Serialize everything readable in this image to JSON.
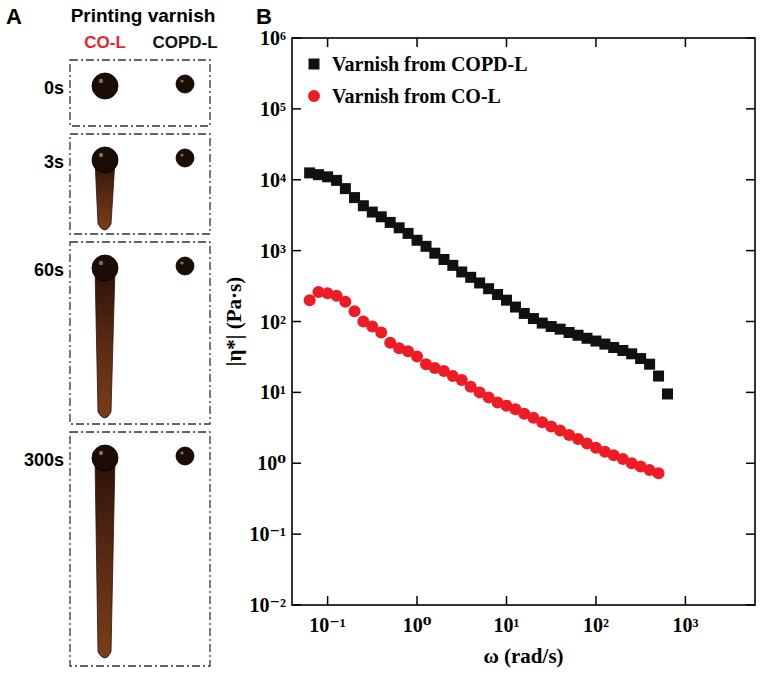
{
  "panel_letters": [
    "A",
    "B"
  ],
  "panel_a": {
    "title": "Printing varnish",
    "columns": [
      {
        "label": "CO-L",
        "color": "#e3262c"
      },
      {
        "label": "COPD-L",
        "color": "#111111"
      }
    ],
    "rows": [
      "0s",
      "3s",
      "60s",
      "300s"
    ]
  },
  "chart_data": {
    "type": "scatter",
    "log": true,
    "legend": "upper left",
    "xlabel": "ω (rad/s)",
    "ylabel": "|η*| (Pa·s)",
    "xlim": [
      0.04,
      6000
    ],
    "ylim": [
      0.01,
      1000000
    ],
    "xticks": [
      {
        "value": 0.1,
        "label": "10⁻¹"
      },
      {
        "value": 1,
        "label": "10⁰"
      },
      {
        "value": 10,
        "label": "10¹"
      },
      {
        "value": 100,
        "label": "10²"
      },
      {
        "value": 1000,
        "label": "10³"
      }
    ],
    "yticks": [
      {
        "value": 0.01,
        "label": "10⁻²"
      },
      {
        "value": 0.1,
        "label": "10⁻¹"
      },
      {
        "value": 1,
        "label": "10⁰"
      },
      {
        "value": 10,
        "label": "10¹"
      },
      {
        "value": 100,
        "label": "10²"
      },
      {
        "value": 1000,
        "label": "10³"
      },
      {
        "value": 10000,
        "label": "10⁴"
      },
      {
        "value": 100000,
        "label": "10⁵"
      },
      {
        "value": 1000000,
        "label": "10⁶"
      }
    ],
    "x": [
      0.063,
      0.079,
      0.1,
      0.126,
      0.158,
      0.2,
      0.251,
      0.316,
      0.398,
      0.501,
      0.631,
      0.794,
      1,
      1.26,
      1.58,
      2,
      2.51,
      3.16,
      3.98,
      5.01,
      6.31,
      7.94,
      10,
      12.6,
      15.8,
      20,
      25.1,
      31.6,
      39.8,
      50.1,
      63.1,
      79.4,
      100,
      126,
      158,
      200,
      251,
      316,
      398,
      501,
      631
    ],
    "series": [
      {
        "name": "Varnish from COPD-L",
        "color": "#111111",
        "marker": "square",
        "values": [
          12500,
          11800,
          11000,
          9800,
          7500,
          5600,
          4300,
          3500,
          3000,
          2500,
          2100,
          1750,
          1400,
          1150,
          920,
          750,
          620,
          500,
          420,
          350,
          290,
          240,
          200,
          160,
          130,
          110,
          95,
          85,
          78,
          70,
          64,
          58,
          53,
          48,
          43,
          39,
          35,
          30,
          25,
          17,
          9.5
        ]
      },
      {
        "name": "Varnish from CO-L",
        "color": "#ee1c24",
        "marker": "circle",
        "values": [
          200,
          260,
          250,
          230,
          190,
          140,
          100,
          85,
          70,
          50,
          42,
          38,
          32,
          25,
          22,
          20,
          17,
          15,
          12,
          10,
          8.5,
          7.2,
          6.5,
          5.8,
          5.0,
          4.4,
          3.8,
          3.3,
          2.9,
          2.5,
          2.2,
          1.9,
          1.65,
          1.45,
          1.3,
          1.15,
          1.0,
          0.9,
          0.8,
          0.72,
          null
        ]
      }
    ]
  }
}
